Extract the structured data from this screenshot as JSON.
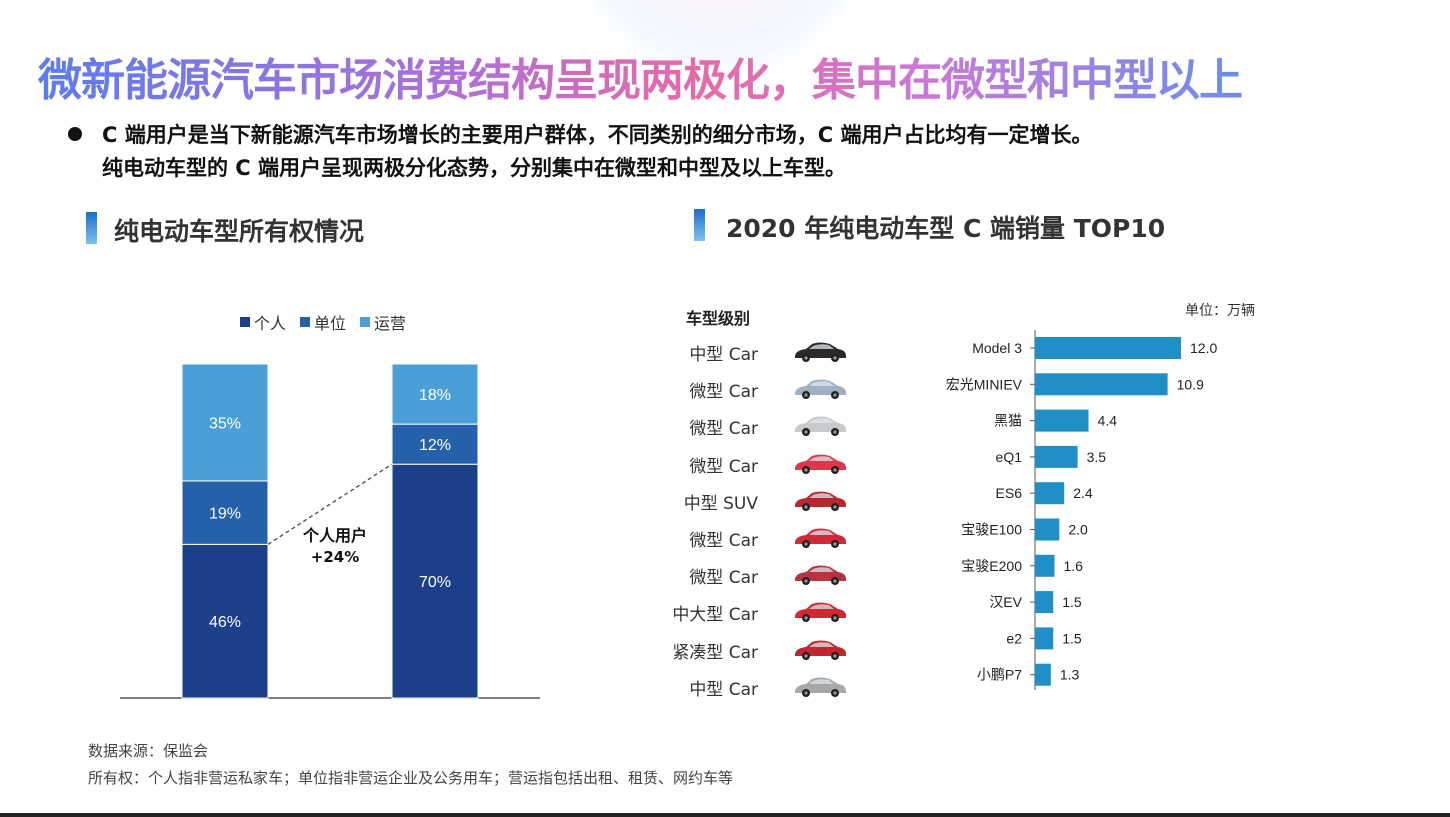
{
  "title": "微新能源汽车市场消费结构呈现两极化，集中在微型和中型以上",
  "summary_lines": [
    "C 端用户是当下新能源汽车市场增长的主要用户群体，不同类别的细分市场，C 端用户占比均有一定增长。",
    "纯电动车型的 C 端用户呈现两极分化态势，分别集中在微型和中型及以上车型。"
  ],
  "left_section": {
    "title": "纯电动车型所有权情况"
  },
  "right_section": {
    "title": "2020 年纯电动车型 C 端销量 TOP10"
  },
  "colors": {
    "personal": "#1b3f88",
    "unit": "#2560ab",
    "operating": "#4a9fd6",
    "topbar": "#1f8fc6"
  },
  "chart_data": [
    {
      "type": "bar",
      "stacked": true,
      "title": "纯电动车型所有权情况",
      "legend": [
        "个人",
        "单位",
        "运营"
      ],
      "categories": [
        "",
        ""
      ],
      "series": [
        {
          "name": "个人",
          "values": [
            46,
            70
          ],
          "labels": [
            "46%",
            "70%"
          ]
        },
        {
          "name": "单位",
          "values": [
            19,
            12
          ],
          "labels": [
            "19%",
            "12%"
          ]
        },
        {
          "name": "运营",
          "values": [
            35,
            18
          ],
          "labels": [
            "35%",
            "18%"
          ]
        }
      ],
      "annotation": {
        "line1": "个人用户",
        "line2": "+24%"
      },
      "ylim": [
        0,
        100
      ]
    },
    {
      "type": "bar",
      "orientation": "horizontal",
      "title": "2020 年纯电动车型 C 端销量 TOP10",
      "unit": "单位：万辆",
      "class_header": "车型级别",
      "categories": [
        "Model 3",
        "宏光MINIEV",
        "黑猫",
        "eQ1",
        "ES6",
        "宝骏E100",
        "宝骏E200",
        "汉EV",
        "e2",
        "小鹏P7"
      ],
      "classes": [
        "中型 Car",
        "微型 Car",
        "微型 Car",
        "微型 Car",
        "中型 SUV",
        "微型 Car",
        "微型 Car",
        "中大型 Car",
        "紧凑型 Car",
        "中型 Car"
      ],
      "car_colors": [
        "#2a2a2a",
        "#9fb0c6",
        "#c9c9c9",
        "#d83a4a",
        "#b8282e",
        "#d02a3a",
        "#b83340",
        "#d0282e",
        "#c0262e",
        "#a8a8a8"
      ],
      "values": [
        12.0,
        10.9,
        4.4,
        3.5,
        2.4,
        2.0,
        1.6,
        1.5,
        1.5,
        1.3
      ],
      "value_labels": [
        "12.0",
        "10.9",
        "4.4",
        "3.5",
        "2.4",
        "2.0",
        "1.6",
        "1.5",
        "1.5",
        "1.3"
      ],
      "xlim": [
        0,
        12
      ]
    }
  ],
  "footnotes": {
    "source": "数据来源：保监会",
    "definition": "所有权：个人指非营运私家车；单位指非营运企业及公务用车；营运指包括出租、租赁、网约车等"
  }
}
